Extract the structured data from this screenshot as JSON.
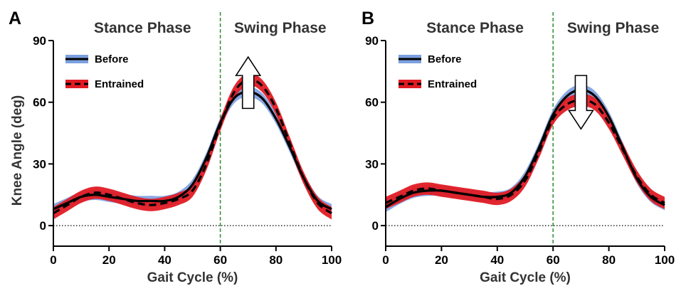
{
  "chart_data": [
    {
      "type": "line",
      "panel": "A",
      "phase_labels": [
        "Stance Phase",
        "Swing Phase"
      ],
      "phase_divider_x": 60,
      "xlabel": "Gait Cycle (%)",
      "ylabel": "Knee Angle (deg)",
      "xlim": [
        0,
        100
      ],
      "ylim": [
        -10,
        90
      ],
      "xticks": [
        0,
        20,
        40,
        60,
        80,
        100
      ],
      "yticks": [
        0,
        30,
        60,
        90
      ],
      "zero_line": true,
      "legend_position": "top-left",
      "arrow": {
        "direction": "up",
        "x": 70,
        "y_from": 57,
        "y_to": 82
      },
      "series": [
        {
          "name": "Before",
          "line_color": "#000000",
          "band_color": "#7b9fe0",
          "x": [
            0,
            5,
            10,
            15,
            20,
            25,
            30,
            35,
            40,
            45,
            50,
            55,
            60,
            65,
            70,
            75,
            80,
            85,
            90,
            95,
            100
          ],
          "y": [
            8,
            11,
            14,
            15,
            14,
            13,
            12,
            12,
            12,
            14,
            20,
            33,
            50,
            62,
            65,
            62,
            52,
            38,
            23,
            12,
            8
          ],
          "band": 2.5
        },
        {
          "name": "Entrained",
          "line_color": "#000000",
          "band_color": "#e01b24",
          "x": [
            0,
            5,
            10,
            15,
            20,
            25,
            30,
            35,
            40,
            45,
            50,
            55,
            60,
            65,
            70,
            75,
            80,
            85,
            90,
            95,
            100
          ],
          "y": [
            6,
            10,
            14,
            16,
            15,
            13,
            11,
            10,
            11,
            13,
            17,
            30,
            49,
            65,
            71,
            68,
            57,
            40,
            23,
            11,
            6
          ],
          "band": 3
        }
      ]
    },
    {
      "type": "line",
      "panel": "B",
      "phase_labels": [
        "Stance Phase",
        "Swing Phase"
      ],
      "phase_divider_x": 60,
      "xlabel": "Gait Cycle (%)",
      "ylabel": "",
      "xlim": [
        0,
        100
      ],
      "ylim": [
        -10,
        90
      ],
      "xticks": [
        0,
        20,
        40,
        60,
        80,
        100
      ],
      "yticks": [
        0,
        30,
        60,
        90
      ],
      "zero_line": true,
      "legend_position": "top-left",
      "arrow": {
        "direction": "down",
        "x": 70,
        "y_from": 73,
        "y_to": 47
      },
      "series": [
        {
          "name": "Before",
          "line_color": "#000000",
          "band_color": "#7b9fe0",
          "x": [
            0,
            5,
            10,
            15,
            20,
            25,
            30,
            35,
            40,
            45,
            50,
            55,
            60,
            65,
            70,
            75,
            80,
            85,
            90,
            95,
            100
          ],
          "y": [
            9,
            13,
            16,
            17,
            17,
            16,
            15,
            14,
            14,
            16,
            24,
            38,
            54,
            63,
            66,
            63,
            53,
            38,
            23,
            14,
            10
          ],
          "band": 2.5
        },
        {
          "name": "Entrained",
          "line_color": "#000000",
          "band_color": "#e01b24",
          "x": [
            0,
            5,
            10,
            15,
            20,
            25,
            30,
            35,
            40,
            45,
            50,
            55,
            60,
            65,
            70,
            75,
            80,
            85,
            90,
            95,
            100
          ],
          "y": [
            11,
            14,
            17,
            18,
            17,
            16,
            15,
            14,
            13,
            15,
            22,
            36,
            52,
            59,
            61,
            59,
            50,
            37,
            24,
            15,
            11
          ],
          "band": 3
        }
      ]
    }
  ]
}
